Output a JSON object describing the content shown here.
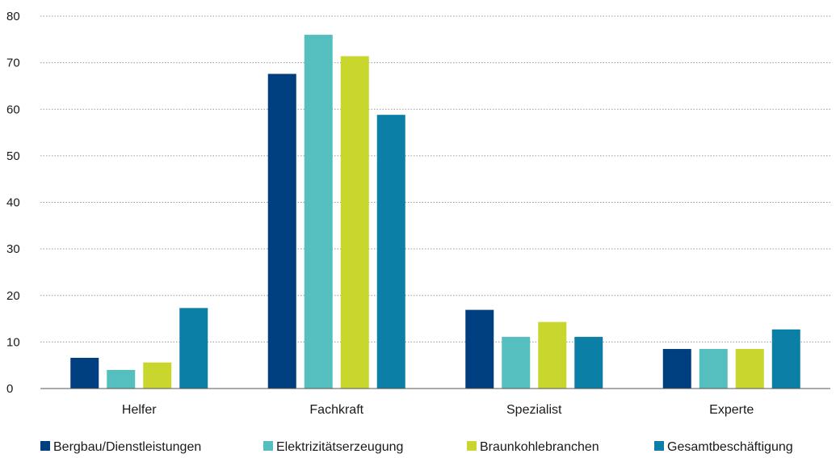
{
  "chart_data": {
    "type": "bar",
    "categories": [
      "Helfer",
      "Fachkraft",
      "Spezialist",
      "Experte"
    ],
    "series": [
      {
        "name": "Bergbau/Dienstleistungen",
        "color": "#003f7f",
        "values": [
          6.6,
          67.6,
          16.9,
          8.5
        ]
      },
      {
        "name": "Elektrizitätserzeugung",
        "color": "#55bfbf",
        "values": [
          4.0,
          76.0,
          11.1,
          8.5
        ]
      },
      {
        "name": "Braunkohlebranchen",
        "color": "#c8d62e",
        "values": [
          5.6,
          71.4,
          14.3,
          8.5
        ]
      },
      {
        "name": "Gesamtbeschäftigung",
        "color": "#0b7fa6",
        "values": [
          17.3,
          58.8,
          11.1,
          12.7
        ]
      }
    ],
    "ylim": [
      0,
      80
    ],
    "yticks": [
      "0",
      "10",
      "20",
      "30",
      "40",
      "50",
      "60",
      "70",
      "80"
    ],
    "grid": true,
    "legend_position": "bottom"
  }
}
